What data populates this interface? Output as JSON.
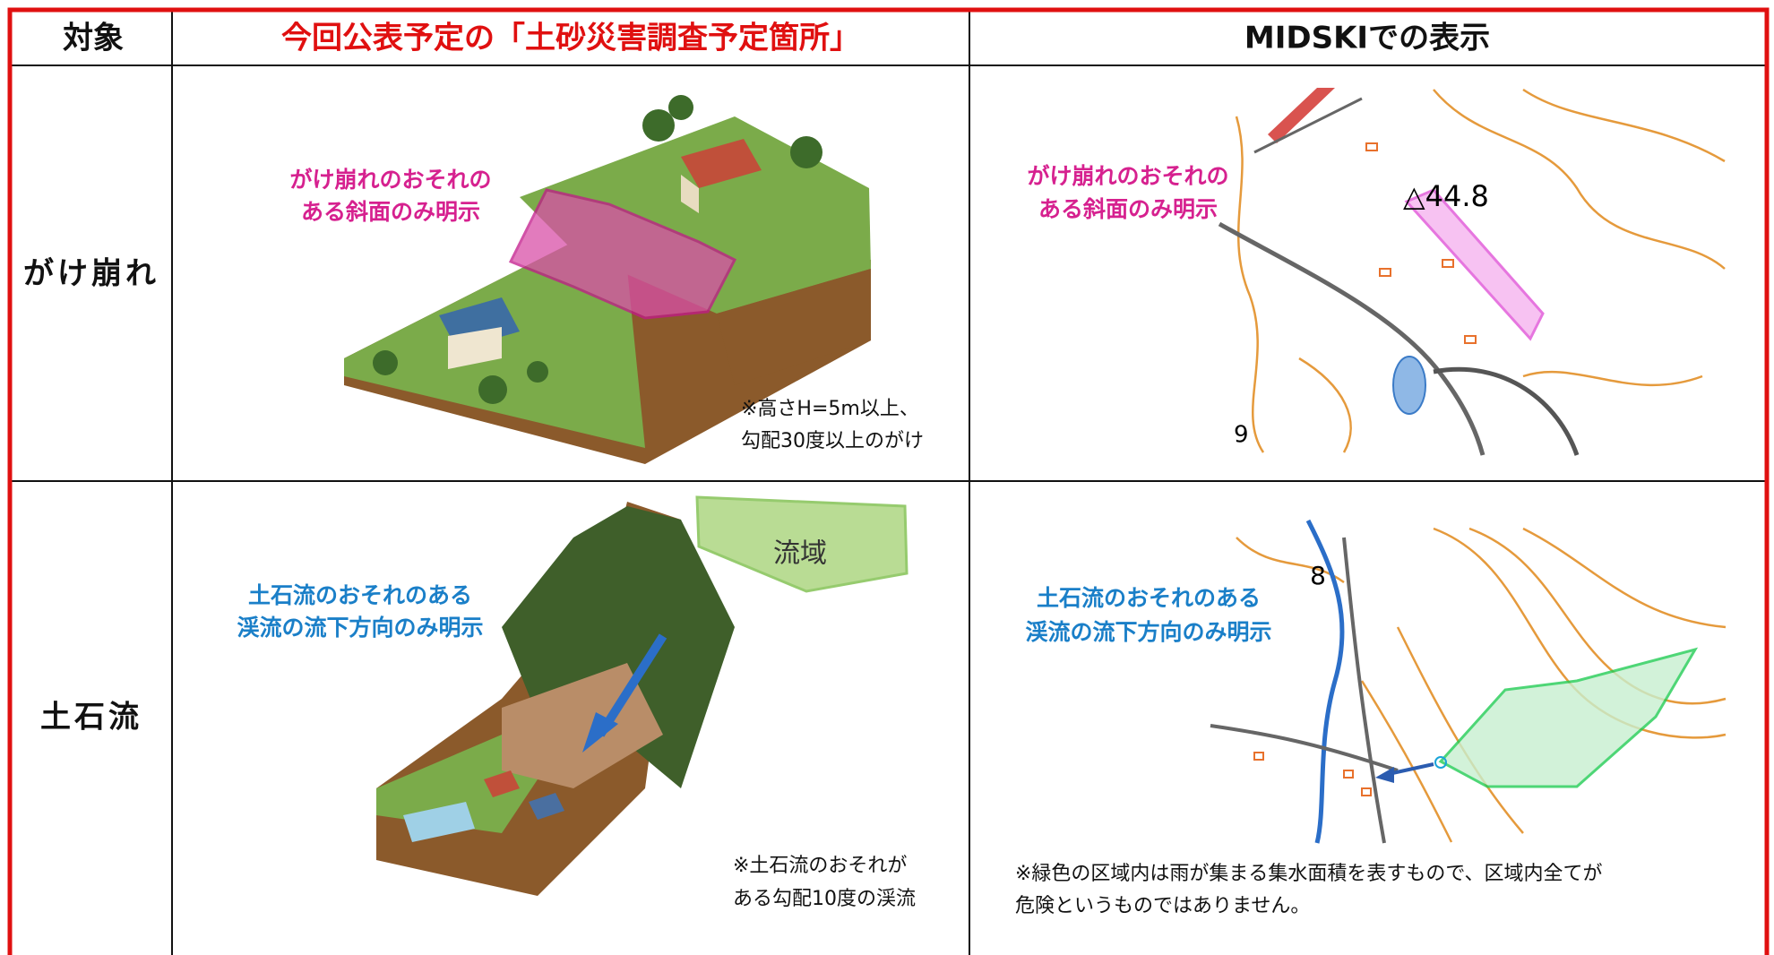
{
  "table": {
    "header": [
      "対象",
      "今回公表予定の「土砂災害調査予定箇所」",
      "MIDSKIでの表示"
    ],
    "rows": [
      {
        "label": "がけ崩れ",
        "illustration": {
          "callout": [
            "がけ崩れのおそれの",
            "ある斜面のみ明示"
          ],
          "note": [
            "※高さH=5m以上、",
            "勾配30度以上のがけ"
          ]
        },
        "map": {
          "callout": [
            "がけ崩れのおそれの",
            "ある斜面のみ明示"
          ],
          "labels": [
            "△44.8",
            "9"
          ]
        }
      },
      {
        "label": "土石流",
        "illustration": {
          "callout": [
            "土石流のおそれのある",
            "渓流の流下方向のみ明示"
          ],
          "area_label": "流域",
          "note": [
            "※土石流のおそれが",
            "ある勾配10度の渓流"
          ]
        },
        "map": {
          "callout": [
            "土石流のおそれのある",
            "渓流の流下方向のみ明示"
          ],
          "labels": [
            "8"
          ],
          "note": [
            "※緑色の区域内は雨が集まる集水面積を表すもので、区域内全てが",
            "危険というものではありません。"
          ]
        }
      }
    ]
  }
}
